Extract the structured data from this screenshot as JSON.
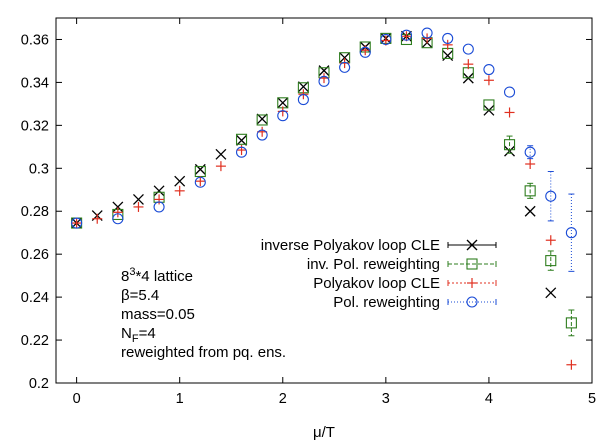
{
  "chart_data": {
    "type": "scatter",
    "xlabel": "μ/T",
    "ylabel": "",
    "xlim": [
      -0.2,
      5.0
    ],
    "ylim": [
      0.2,
      0.37
    ],
    "x_ticks": [
      0,
      1,
      2,
      3,
      4,
      5
    ],
    "x_tick_labels": [
      "0",
      "1",
      "2",
      "3",
      "4",
      "5"
    ],
    "y_ticks": [
      0.2,
      0.22,
      0.24,
      0.26,
      0.28,
      0.3,
      0.32,
      0.34,
      0.36
    ],
    "y_tick_labels": [
      "0.2",
      "0.22",
      "0.24",
      "0.26",
      "0.28",
      "0.3",
      "0.32",
      "0.34",
      "0.36"
    ],
    "grid": false,
    "legend_position": "right-middle",
    "series": [
      {
        "name": "inverse Polyakov loop CLE",
        "marker": "x",
        "color": "#000000",
        "x": [
          0,
          0.2,
          0.4,
          0.6,
          0.8,
          1.0,
          1.2,
          1.4,
          1.6,
          1.8,
          2.0,
          2.2,
          2.4,
          2.6,
          2.8,
          3.0,
          3.2,
          3.4,
          3.6,
          3.8,
          4.0,
          4.2,
          4.4,
          4.6
        ],
        "y": [
          0.2745,
          0.278,
          0.282,
          0.2855,
          0.2895,
          0.294,
          0.2995,
          0.3065,
          0.313,
          0.323,
          0.3305,
          0.338,
          0.3455,
          0.3515,
          0.3565,
          0.3605,
          0.3615,
          0.3585,
          0.3525,
          0.342,
          0.327,
          0.308,
          0.28,
          0.242
        ]
      },
      {
        "name": "inv. Pol. reweighting",
        "marker": "square",
        "color": "#2e7d1e",
        "x": [
          0,
          0.4,
          0.8,
          1.2,
          1.6,
          1.8,
          2.0,
          2.2,
          2.4,
          2.6,
          2.8,
          3.0,
          3.2,
          3.4,
          3.6,
          3.8,
          4.0,
          4.2,
          4.4,
          4.6,
          4.8
        ],
        "y": [
          0.2745,
          0.2785,
          0.2865,
          0.2985,
          0.3135,
          0.3225,
          0.3305,
          0.3375,
          0.3445,
          0.3515,
          0.3565,
          0.3605,
          0.36,
          0.3585,
          0.3535,
          0.3445,
          0.3295,
          0.311,
          0.2895,
          0.257,
          0.228
        ],
        "err": [
          0.001,
          0.001,
          0.001,
          0.001,
          0.001,
          0.001,
          0.001,
          0.001,
          0.001,
          0.001,
          0.001,
          0.001,
          0.001,
          0.001,
          0.001,
          0.0015,
          0.002,
          0.004,
          0.0035,
          0.0045,
          0.006
        ]
      },
      {
        "name": "Polyakov loop CLE",
        "marker": "+",
        "color": "#e03020",
        "x": [
          0,
          0.2,
          0.4,
          0.6,
          0.8,
          1.0,
          1.2,
          1.4,
          1.6,
          1.8,
          2.0,
          2.2,
          2.4,
          2.6,
          2.8,
          3.0,
          3.2,
          3.4,
          3.6,
          3.8,
          4.0,
          4.2,
          4.4,
          4.6,
          4.8
        ],
        "y": [
          0.2745,
          0.2765,
          0.2795,
          0.282,
          0.2855,
          0.2895,
          0.294,
          0.301,
          0.3085,
          0.317,
          0.3265,
          0.3345,
          0.342,
          0.349,
          0.355,
          0.3595,
          0.3615,
          0.3605,
          0.3575,
          0.3485,
          0.341,
          0.326,
          0.302,
          0.2665,
          0.2085
        ]
      },
      {
        "name": "Pol. reweighting",
        "marker": "circle",
        "color": "#1a4bd6",
        "x": [
          0,
          0.4,
          0.8,
          1.2,
          1.6,
          1.8,
          2.0,
          2.2,
          2.4,
          2.6,
          2.8,
          3.0,
          3.2,
          3.4,
          3.6,
          3.8,
          4.0,
          4.2,
          4.4,
          4.6,
          4.8
        ],
        "y": [
          0.2745,
          0.2765,
          0.282,
          0.2935,
          0.3075,
          0.3155,
          0.3245,
          0.332,
          0.3405,
          0.347,
          0.354,
          0.36,
          0.362,
          0.363,
          0.3605,
          0.3555,
          0.346,
          0.3355,
          0.3075,
          0.287,
          0.27
        ],
        "err": [
          0.001,
          0.001,
          0.001,
          0.001,
          0.001,
          0.001,
          0.001,
          0.001,
          0.001,
          0.001,
          0.001,
          0.001,
          0.001,
          0.001,
          0.001,
          0.001,
          0.001,
          0.002,
          0.003,
          0.0115,
          0.018
        ]
      }
    ],
    "annotations": [
      {
        "base": "8",
        "sup": "3",
        "rest": "*4 lattice"
      },
      {
        "text": "β=5.4"
      },
      {
        "text": "mass=0.05"
      },
      {
        "base": "N",
        "sub": "F",
        "rest": "=4"
      },
      {
        "text": "reweighted from pq. ens."
      }
    ]
  }
}
